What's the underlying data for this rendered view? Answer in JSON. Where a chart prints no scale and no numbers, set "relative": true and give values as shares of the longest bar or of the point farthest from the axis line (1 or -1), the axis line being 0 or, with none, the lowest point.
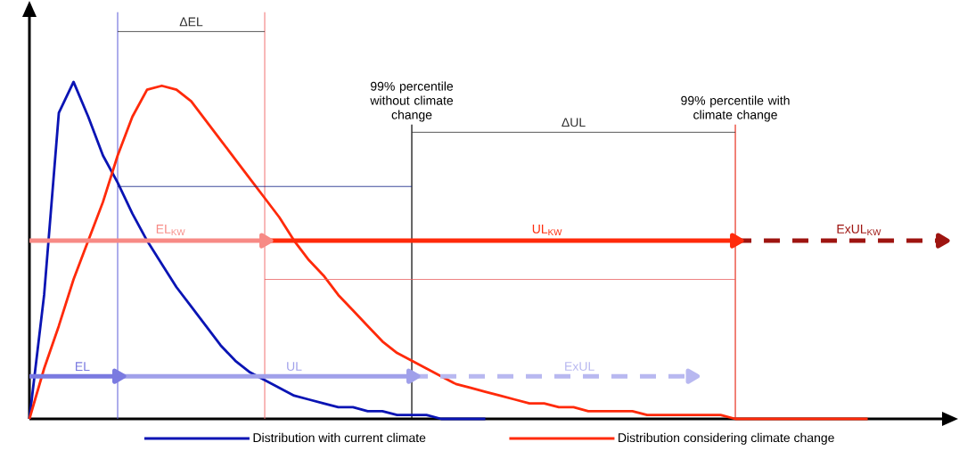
{
  "chart_data": {
    "type": "line",
    "relative": true,
    "tick_labels": false,
    "legend": "bottom",
    "categories": [
      null,
      null,
      null,
      null,
      null,
      null,
      null,
      null,
      null,
      null,
      null,
      null,
      null,
      null,
      null,
      null,
      null,
      null,
      null,
      null,
      null,
      null,
      null,
      null,
      null,
      null,
      null,
      null,
      null,
      null,
      null,
      null,
      null,
      null,
      null,
      null,
      null,
      null,
      null,
      null,
      null,
      null,
      null,
      null,
      null,
      null,
      null,
      null,
      null,
      null,
      null,
      null,
      null,
      null,
      null,
      null,
      null,
      null,
      null,
      null,
      null,
      null,
      null
    ],
    "series": [
      {
        "name": "Distribution with current climate",
        "color": "#0a14b4",
        "values": [
          0,
          0.32,
          0.79,
          0.87,
          0.78,
          0.68,
          0.61,
          0.53,
          0.46,
          0.4,
          0.34,
          0.29,
          0.24,
          0.19,
          0.15,
          0.12,
          0.1,
          0.08,
          0.06,
          0.05,
          0.04,
          0.03,
          0.03,
          0.02,
          0.02,
          0.01,
          0.01,
          0.01,
          0,
          0,
          0,
          0,
          null,
          null,
          null,
          null,
          null,
          null,
          null,
          null,
          null,
          null,
          null,
          null,
          null,
          null,
          null,
          null,
          null,
          null,
          null,
          null,
          null,
          null,
          null,
          null,
          null,
          null,
          null,
          null,
          null,
          null,
          null
        ]
      },
      {
        "name": "Distribution considering climate change",
        "color": "#ff2a0a",
        "values": [
          0,
          0.13,
          0.24,
          0.36,
          0.46,
          0.56,
          0.68,
          0.78,
          0.85,
          0.86,
          0.85,
          0.82,
          0.77,
          0.72,
          0.67,
          0.62,
          0.57,
          0.52,
          0.46,
          0.41,
          0.37,
          0.32,
          0.28,
          0.24,
          0.2,
          0.17,
          0.15,
          0.13,
          0.11,
          0.09,
          0.08,
          0.07,
          0.06,
          0.05,
          0.04,
          0.04,
          0.03,
          0.03,
          0.02,
          0.02,
          0.02,
          0.02,
          0.01,
          0.01,
          0.01,
          0.01,
          0.01,
          0.01,
          0,
          0,
          0,
          0,
          0,
          0,
          0,
          0,
          0,
          0,
          null,
          null,
          null,
          null,
          null
        ]
      },
      {
        "name": "ΔEL",
        "color": "#303030",
        "values": [
          null,
          null,
          null,
          null,
          null,
          null,
          1.0,
          null,
          null,
          null,
          null,
          null,
          null,
          null,
          null,
          null,
          1.0,
          null,
          null,
          null,
          null,
          null,
          null,
          null,
          null,
          null,
          null,
          null,
          null,
          null,
          null,
          null,
          null,
          null,
          null,
          null,
          null,
          null,
          null,
          null,
          null,
          null,
          null,
          null,
          null,
          null,
          null,
          null,
          null,
          null,
          null,
          null,
          null,
          null,
          null,
          null,
          null,
          null,
          null,
          null,
          null,
          null,
          null
        ]
      },
      {
        "name": "ΔUL",
        "color": "#303030",
        "values": [
          null,
          null,
          null,
          null,
          null,
          null,
          null,
          null,
          null,
          null,
          null,
          null,
          null,
          null,
          null,
          null,
          null,
          null,
          null,
          null,
          null,
          null,
          null,
          null,
          null,
          null,
          0.74,
          null,
          null,
          null,
          null,
          null,
          null,
          null,
          null,
          null,
          null,
          null,
          null,
          null,
          null,
          null,
          null,
          null,
          null,
          null,
          null,
          null,
          0.74,
          null,
          null,
          null,
          null,
          null,
          null,
          null,
          null,
          null,
          null,
          null,
          null,
          null,
          null
        ]
      },
      {
        "color": "#0a1a80",
        "values": [
          null,
          null,
          null,
          null,
          null,
          null,
          0.6,
          null,
          null,
          null,
          null,
          null,
          null,
          null,
          null,
          null,
          null,
          null,
          null,
          null,
          null,
          null,
          null,
          null,
          null,
          null,
          0.6,
          null,
          null,
          null,
          null,
          null,
          null,
          null,
          null,
          null,
          null,
          null,
          null,
          null,
          null,
          null,
          null,
          null,
          null,
          null,
          null,
          null,
          null,
          null,
          null,
          null,
          null,
          null,
          null,
          null,
          null,
          null,
          null,
          null,
          null,
          null,
          null
        ]
      },
      {
        "color": "#e86060",
        "values": [
          null,
          null,
          null,
          null,
          null,
          null,
          null,
          null,
          null,
          null,
          null,
          null,
          null,
          null,
          null,
          null,
          0.36,
          null,
          null,
          null,
          null,
          null,
          null,
          null,
          null,
          null,
          null,
          null,
          null,
          null,
          null,
          null,
          null,
          null,
          null,
          null,
          null,
          null,
          null,
          null,
          null,
          null,
          null,
          null,
          null,
          null,
          null,
          null,
          0.36,
          null,
          null,
          null,
          null,
          null,
          null,
          null,
          null,
          null,
          null,
          null,
          null,
          null,
          null
        ]
      },
      {
        "name": "EL$_{KW}$",
        "color": "#f78a85",
        "marker": "triangle",
        "values": [
          0.46,
          null,
          null,
          null,
          null,
          null,
          null,
          null,
          null,
          null,
          null,
          null,
          null,
          null,
          null,
          null,
          0.46,
          null,
          null,
          null,
          null,
          null,
          null,
          null,
          null,
          null,
          null,
          null,
          null,
          null,
          null,
          null,
          null,
          null,
          null,
          null,
          null,
          null,
          null,
          null,
          null,
          null,
          null,
          null,
          null,
          null,
          null,
          null,
          null,
          null,
          null,
          null,
          null,
          null,
          null,
          null,
          null,
          null,
          null,
          null,
          null,
          null,
          null
        ]
      },
      {
        "name": "UL$_{KW}$",
        "color": "#ff2a0a",
        "marker": "triangle",
        "values": [
          null,
          null,
          null,
          null,
          null,
          null,
          null,
          null,
          null,
          null,
          null,
          null,
          null,
          null,
          null,
          null,
          0.46,
          null,
          null,
          null,
          null,
          null,
          null,
          null,
          null,
          null,
          null,
          null,
          null,
          null,
          null,
          null,
          null,
          null,
          null,
          null,
          null,
          null,
          null,
          null,
          null,
          null,
          null,
          null,
          null,
          null,
          null,
          null,
          0.46,
          null,
          null,
          null,
          null,
          null,
          null,
          null,
          null,
          null,
          null,
          null,
          null,
          null,
          null
        ]
      },
      {
        "name": "ExUL$_{KW}$",
        "color": "#9e1410",
        "marker": "triangle",
        "line_style": "dashed",
        "values": [
          null,
          null,
          null,
          null,
          null,
          null,
          null,
          null,
          null,
          null,
          null,
          null,
          null,
          null,
          null,
          null,
          null,
          null,
          null,
          null,
          null,
          null,
          null,
          null,
          null,
          null,
          null,
          null,
          null,
          null,
          null,
          null,
          null,
          null,
          null,
          null,
          null,
          null,
          null,
          null,
          null,
          null,
          null,
          null,
          null,
          null,
          null,
          null,
          0.46,
          null,
          null,
          null,
          null,
          null,
          null,
          null,
          null,
          null,
          null,
          null,
          null,
          null,
          0.46
        ]
      },
      {
        "name": "EL",
        "color": "#7a7ae0",
        "marker": "triangle",
        "values": [
          0.11,
          null,
          null,
          null,
          null,
          null,
          0.11,
          null,
          null,
          null,
          null,
          null,
          null,
          null,
          null,
          null,
          null,
          null,
          null,
          null,
          null,
          null,
          null,
          null,
          null,
          null,
          null,
          null,
          null,
          null,
          null,
          null,
          null,
          null,
          null,
          null,
          null,
          null,
          null,
          null,
          null,
          null,
          null,
          null,
          null,
          null,
          null,
          null,
          null,
          null,
          null,
          null,
          null,
          null,
          null,
          null,
          null,
          null,
          null,
          null,
          null,
          null,
          null
        ]
      },
      {
        "name": "UL",
        "color": "#a0a0ea",
        "marker": "triangle",
        "values": [
          null,
          null,
          null,
          null,
          null,
          null,
          0.11,
          null,
          null,
          null,
          null,
          null,
          null,
          null,
          null,
          null,
          null,
          null,
          null,
          null,
          null,
          null,
          null,
          null,
          null,
          null,
          0.11,
          null,
          null,
          null,
          null,
          null,
          null,
          null,
          null,
          null,
          null,
          null,
          null,
          null,
          null,
          null,
          null,
          null,
          null,
          null,
          null,
          null,
          null,
          null,
          null,
          null,
          null,
          null,
          null,
          null,
          null,
          null,
          null,
          null,
          null,
          null,
          null
        ]
      },
      {
        "name": "ExUL",
        "color": "#b8b8f0",
        "marker": "triangle",
        "line_style": "dashed",
        "values": [
          null,
          null,
          null,
          null,
          null,
          null,
          null,
          null,
          null,
          null,
          null,
          null,
          null,
          null,
          null,
          null,
          null,
          null,
          null,
          null,
          null,
          null,
          null,
          null,
          null,
          null,
          0.11,
          null,
          null,
          null,
          null,
          null,
          null,
          null,
          null,
          null,
          null,
          null,
          null,
          null,
          null,
          null,
          null,
          null,
          null,
          0.11,
          null,
          null,
          null,
          null,
          null,
          null,
          null,
          null,
          null,
          null,
          null,
          null,
          null,
          null,
          null,
          null,
          null
        ]
      }
    ],
    "annotations": [
      "99% percentile without climate change",
      "99% percentile with climate change"
    ]
  }
}
